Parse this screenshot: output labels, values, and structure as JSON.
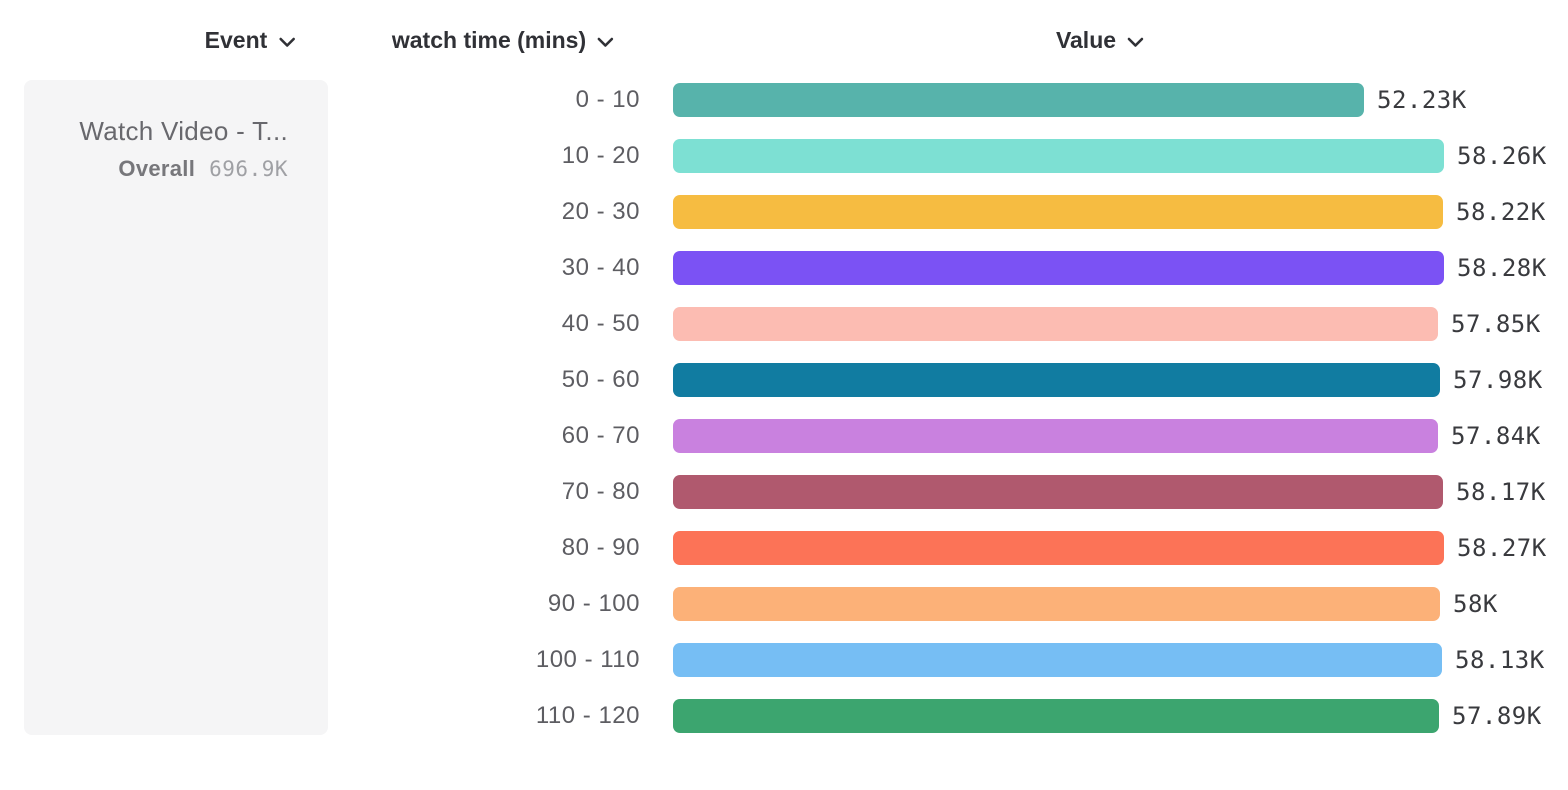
{
  "headers": {
    "event": "Event",
    "breakdown": "watch time (mins)",
    "value": "Value"
  },
  "event_card": {
    "event_name": "Watch Video - T...",
    "overall_label": "Overall",
    "overall_value": "696.9K"
  },
  "chart_data": {
    "type": "bar",
    "orientation": "horizontal",
    "title": "",
    "xlabel": "Value",
    "ylabel": "watch time (mins)",
    "xlim": [
      0,
      58280
    ],
    "grid": false,
    "legend": false,
    "categories": [
      "0 - 10",
      "10 - 20",
      "20 - 30",
      "30 - 40",
      "40 - 50",
      "50 - 60",
      "60 - 70",
      "70 - 80",
      "80 - 90",
      "90 - 100",
      "100 - 110",
      "110 - 120"
    ],
    "values": [
      52230,
      58260,
      58220,
      58280,
      57850,
      57980,
      57840,
      58170,
      58270,
      58000,
      58130,
      57890
    ],
    "value_labels": [
      "52.23K",
      "58.26K",
      "58.22K",
      "58.28K",
      "57.85K",
      "57.98K",
      "57.84K",
      "58.17K",
      "58.27K",
      "58K",
      "58.13K",
      "57.89K"
    ],
    "bar_colors": [
      "#57b3ab",
      "#7de0d3",
      "#f6bc41",
      "#7b52f4",
      "#fcbcb2",
      "#117ca1",
      "#c981df",
      "#b0596e",
      "#fc7357",
      "#fcb178",
      "#76bef4",
      "#3ca56f"
    ]
  },
  "layout_colors": {
    "card_bg": "#f5f5f6",
    "header_text": "#303136",
    "category_text": "#5d5d62",
    "value_text": "#393a3e"
  }
}
